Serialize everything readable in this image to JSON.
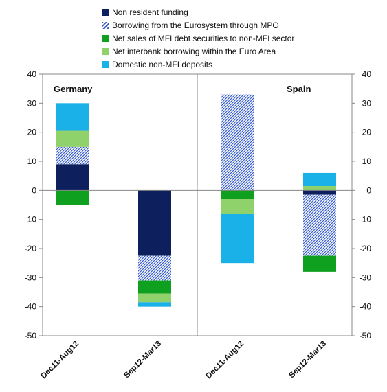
{
  "chart_data": {
    "type": "bar",
    "stacked": true,
    "panels": [
      {
        "title": "Germany",
        "categories": [
          "Dec11-Aug12",
          "Sep12-Mar13"
        ]
      },
      {
        "title": "Spain",
        "categories": [
          "Dec11-Aug12",
          "Sep12-Mar13"
        ]
      }
    ],
    "ylim": [
      -50,
      40
    ],
    "yticks": [
      40,
      30,
      20,
      10,
      0,
      -10,
      -20,
      -30,
      -40,
      -50
    ],
    "grid": false,
    "legend_position": "top",
    "series": [
      {
        "name": "Non resident funding",
        "color": "#0d1f5c",
        "pattern": "solid",
        "values": [
          9,
          -22.5,
          0,
          -1.5
        ]
      },
      {
        "name": "Borrowing from the Eurosystem through MPO",
        "color": "#3a5fcd",
        "pattern": "hatch",
        "values": [
          6,
          -8.5,
          33,
          -21
        ]
      },
      {
        "name": "Net sales of MFI debt securities to non-MFI sector",
        "color": "#10a020",
        "pattern": "solid",
        "values": [
          -5,
          -4.5,
          -3,
          -5.5
        ]
      },
      {
        "name": "Net interbank borrowing within the Euro Area",
        "color": "#8fd16a",
        "pattern": "solid",
        "values": [
          5.5,
          -3,
          -5,
          1.5
        ]
      },
      {
        "name": "Domestic non-MFI deposits",
        "color": "#1ab0e8",
        "pattern": "solid",
        "values": [
          9.5,
          -1.5,
          -17,
          4.5
        ]
      }
    ]
  }
}
